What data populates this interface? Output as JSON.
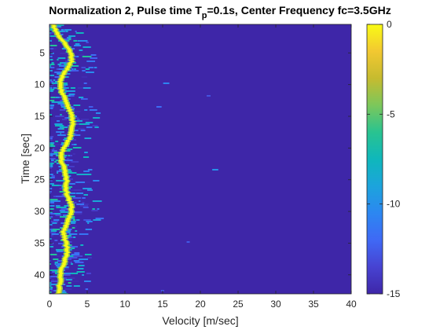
{
  "chart_data": {
    "type": "heatmap",
    "title": {
      "prefix": "Normalization 2, Pulse time T",
      "subscript": "p",
      "suffix": "=0.1s, Center Frequency fc=3.5GHz"
    },
    "xlabel": "Velocity [m/sec]",
    "ylabel": "Time [sec]",
    "xlim": [
      0,
      40
    ],
    "ylim": [
      0.5,
      43
    ],
    "y_direction": "reverse",
    "xticks": [
      0,
      5,
      10,
      15,
      20,
      25,
      30,
      35,
      40
    ],
    "yticks": [
      5,
      10,
      15,
      20,
      25,
      30,
      35,
      40
    ],
    "colorbar": {
      "range": [
        -15,
        0
      ],
      "ticks": [
        0,
        -5,
        -10,
        -15
      ],
      "colormap": "parula",
      "stops": [
        "#3e26a8",
        "#4743d2",
        "#3f69f5",
        "#2c87f1",
        "#1ca4dc",
        "#0fb7bb",
        "#29c390",
        "#7cc75b",
        "#c6bb2f",
        "#f2c831",
        "#f9fb15"
      ]
    },
    "background_level": -15,
    "ridge": {
      "description_points_time": [
        1,
        2,
        3,
        4,
        5,
        6,
        7,
        8,
        9,
        10,
        11,
        12,
        13,
        14,
        15,
        16,
        17,
        18,
        19,
        20,
        21,
        22,
        23,
        24,
        25,
        26,
        27,
        28,
        29,
        30,
        31,
        32,
        33,
        34,
        35,
        36,
        37,
        38,
        39,
        40,
        41,
        42,
        43
      ],
      "velocity": [
        0.6,
        1.1,
        1.8,
        2.4,
        2.8,
        3.0,
        2.6,
        2.0,
        1.5,
        1.4,
        1.6,
        2.0,
        2.4,
        2.7,
        3.0,
        3.1,
        3.0,
        2.8,
        2.4,
        1.9,
        1.5,
        1.6,
        1.9,
        2.2,
        2.3,
        2.2,
        2.3,
        2.6,
        2.9,
        2.8,
        2.6,
        2.2,
        1.9,
        2.0,
        2.2,
        2.4,
        2.2,
        1.9,
        1.6,
        1.5,
        1.4,
        1.3,
        1.2
      ],
      "level": 0
    }
  }
}
